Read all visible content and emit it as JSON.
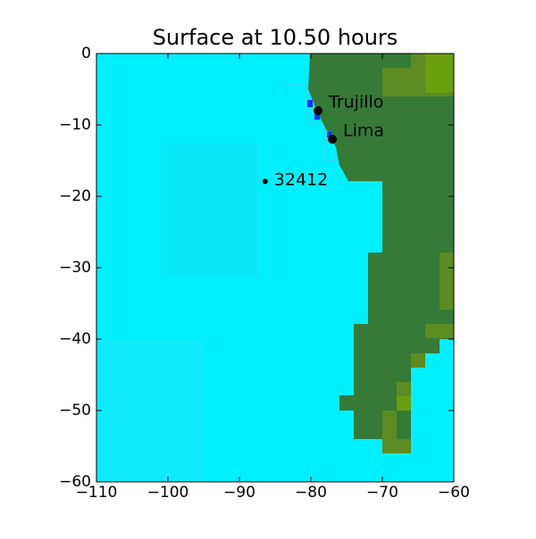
{
  "chart_data": {
    "type": "map",
    "title": "Surface at 10.50 hours",
    "xlim": [
      -110,
      -60
    ],
    "ylim": [
      -60,
      0
    ],
    "xticks": [
      {
        "value": -110,
        "label": "−110"
      },
      {
        "value": -100,
        "label": "−100"
      },
      {
        "value": -90,
        "label": "−90"
      },
      {
        "value": -80,
        "label": "−80"
      },
      {
        "value": -70,
        "label": "−70"
      },
      {
        "value": -60,
        "label": "−60"
      }
    ],
    "yticks": [
      0,
      {
        "value": -10,
        "label": "−10"
      },
      {
        "value": -20,
        "label": "−20"
      },
      {
        "value": -30,
        "label": "−30"
      },
      {
        "value": -40,
        "label": "−40"
      },
      {
        "value": -50,
        "label": "−50"
      },
      {
        "value": -60,
        "label": "−60"
      }
    ],
    "points": [
      {
        "name": "Trujillo",
        "x": -79,
        "y": -8,
        "size": 5
      },
      {
        "name": "Lima",
        "x": -77,
        "y": -12,
        "size": 5
      },
      {
        "name": "32412",
        "x": -86.4,
        "y": -17.9,
        "size": 3
      }
    ],
    "color": "#000000"
  }
}
